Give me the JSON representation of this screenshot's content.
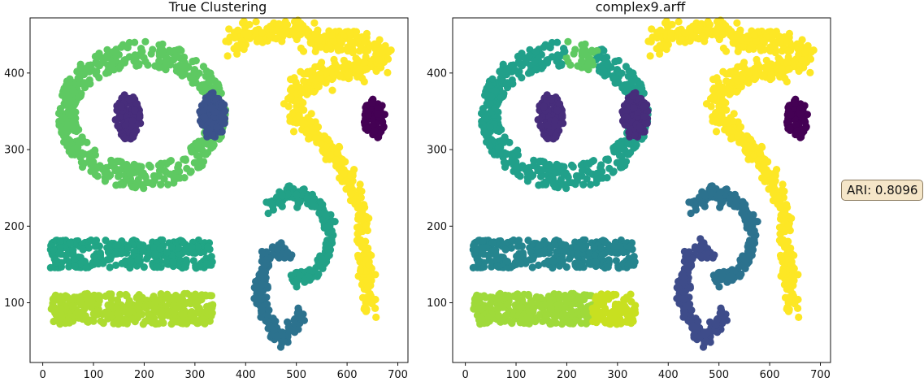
{
  "figure": {
    "annotation": "ARI: 0.8096"
  },
  "palette": {
    "c0": "#440154",
    "c1": "#472d7b",
    "c2": "#3b528b",
    "c3": "#2c728e",
    "c4": "#21918c",
    "c5": "#28ae80",
    "c6": "#5ec962",
    "c7": "#addc30",
    "c8": "#fde725",
    "c9": "#25858e",
    "c10": "#3e4c8a",
    "c11": "#35b779",
    "c12": "#5ec962",
    "c13": "#c8e020",
    "c14": "#9fda3a"
  },
  "chart_data": [
    {
      "type": "scatter",
      "title": "True Clustering",
      "xlabel": "",
      "ylabel": "",
      "xlim": [
        -25,
        720
      ],
      "ylim": [
        22,
        472
      ],
      "xticks": [
        0,
        100,
        200,
        300,
        400,
        500,
        600,
        700
      ],
      "yticks": [
        100,
        200,
        300,
        400
      ],
      "grid": false,
      "clusters": [
        {
          "shape": "ring",
          "cx": 195,
          "cy": 345,
          "rx": 148,
          "ry": 80,
          "thickness": 18,
          "n": 560,
          "color": "#5ec962"
        },
        {
          "shape": "blob",
          "cx": 168,
          "cy": 343,
          "rx": 26,
          "ry": 30,
          "n": 110,
          "color": "#472d7b"
        },
        {
          "shape": "blob",
          "cx": 335,
          "cy": 343,
          "rx": 26,
          "ry": 32,
          "n": 110,
          "color": "#3b528b"
        },
        {
          "shape": "blob",
          "cx": 653,
          "cy": 340,
          "rx": 22,
          "ry": 26,
          "n": 90,
          "color": "#440154"
        },
        {
          "shape": "rect",
          "x0": 15,
          "x1": 335,
          "y0": 145,
          "y1": 182,
          "n": 330,
          "color": "#21a585"
        },
        {
          "shape": "rect",
          "x0": 15,
          "x1": 335,
          "y0": 72,
          "y1": 112,
          "n": 360,
          "color": "#addc30"
        },
        {
          "shape": "poly",
          "points": [
            [
              370,
              440
            ],
            [
              410,
              450
            ],
            [
              460,
              455
            ],
            [
              520,
              448
            ],
            [
              570,
              442
            ],
            [
              640,
              438
            ],
            [
              675,
              420
            ],
            [
              630,
              405
            ],
            [
              580,
              400
            ],
            [
              555,
              395
            ],
            [
              520,
              392
            ],
            [
              500,
              380
            ],
            [
              495,
              360
            ],
            [
              510,
              340
            ],
            [
              540,
              320
            ],
            [
              570,
              300
            ],
            [
              590,
              280
            ],
            [
              605,
              255
            ],
            [
              620,
              235
            ],
            [
              630,
              210
            ],
            [
              632,
              180
            ],
            [
              635,
              150
            ],
            [
              638,
              120
            ],
            [
              642,
              90
            ]
          ],
          "thick": 14,
          "n": 750,
          "color": "#fde725"
        },
        {
          "shape": "poly",
          "points": [
            [
              450,
              225
            ],
            [
              470,
              240
            ],
            [
              490,
              245
            ],
            [
              510,
              238
            ],
            [
              540,
              230
            ],
            [
              560,
              210
            ],
            [
              565,
              185
            ],
            [
              560,
              165
            ],
            [
              550,
              150
            ],
            [
              535,
              140
            ],
            [
              520,
              132
            ],
            [
              500,
              130
            ],
            [
              490,
              135
            ]
          ],
          "thick": 10,
          "n": 200,
          "color": "#22a187"
        },
        {
          "shape": "poly",
          "points": [
            [
              485,
              165
            ],
            [
              470,
              172
            ],
            [
              455,
              168
            ],
            [
              440,
              155
            ],
            [
              432,
              135
            ],
            [
              428,
              115
            ],
            [
              432,
              95
            ],
            [
              440,
              80
            ],
            [
              455,
              65
            ],
            [
              465,
              55
            ],
            [
              470,
              48
            ],
            [
              478,
              55
            ],
            [
              485,
              65
            ],
            [
              500,
              78
            ],
            [
              515,
              82
            ]
          ],
          "thick": 10,
          "n": 200,
          "color": "#2c728e"
        }
      ]
    },
    {
      "type": "scatter",
      "title": "complex9.arff",
      "xlabel": "",
      "ylabel": "",
      "xlim": [
        -25,
        720
      ],
      "ylim": [
        22,
        472
      ],
      "xticks": [
        0,
        100,
        200,
        300,
        400,
        500,
        600,
        700
      ],
      "yticks": [
        100,
        200,
        300,
        400
      ],
      "grid": false,
      "clusters": [
        {
          "shape": "ring",
          "cx": 195,
          "cy": 345,
          "rx": 148,
          "ry": 80,
          "thickness": 18,
          "n": 560,
          "color": "#21a08a",
          "segment": {
            "angle_min": 1.15,
            "angle_max": 1.55,
            "color": "#5ec962"
          }
        },
        {
          "shape": "blob",
          "cx": 168,
          "cy": 343,
          "rx": 26,
          "ry": 30,
          "n": 110,
          "color": "#472d7b"
        },
        {
          "shape": "blob",
          "cx": 335,
          "cy": 343,
          "rx": 26,
          "ry": 32,
          "n": 110,
          "color": "#472d7b"
        },
        {
          "shape": "blob",
          "cx": 653,
          "cy": 340,
          "rx": 22,
          "ry": 26,
          "n": 90,
          "color": "#440154"
        },
        {
          "shape": "rect",
          "x0": 15,
          "x1": 335,
          "y0": 145,
          "y1": 182,
          "n": 330,
          "color": "#25858e"
        },
        {
          "shape": "rect",
          "x0": 15,
          "x1": 250,
          "y0": 72,
          "y1": 112,
          "n": 270,
          "color": "#9fda3a"
        },
        {
          "shape": "rect",
          "x0": 250,
          "x1": 335,
          "y0": 72,
          "y1": 112,
          "n": 100,
          "color": "#c8e020"
        },
        {
          "shape": "poly",
          "points": [
            [
              370,
              440
            ],
            [
              410,
              450
            ],
            [
              460,
              455
            ],
            [
              520,
              448
            ],
            [
              570,
              442
            ],
            [
              640,
              438
            ],
            [
              675,
              420
            ],
            [
              630,
              405
            ],
            [
              580,
              400
            ],
            [
              555,
              395
            ],
            [
              520,
              392
            ],
            [
              500,
              380
            ],
            [
              495,
              360
            ],
            [
              510,
              340
            ],
            [
              540,
              320
            ],
            [
              570,
              300
            ],
            [
              590,
              280
            ],
            [
              605,
              255
            ],
            [
              620,
              235
            ],
            [
              630,
              210
            ],
            [
              632,
              180
            ],
            [
              635,
              150
            ],
            [
              638,
              120
            ],
            [
              642,
              90
            ]
          ],
          "thick": 14,
          "n": 750,
          "color": "#fde725"
        },
        {
          "shape": "poly",
          "points": [
            [
              450,
              225
            ],
            [
              470,
              240
            ],
            [
              490,
              245
            ],
            [
              510,
              238
            ],
            [
              540,
              230
            ],
            [
              560,
              210
            ],
            [
              565,
              185
            ],
            [
              560,
              165
            ],
            [
              550,
              150
            ],
            [
              535,
              140
            ],
            [
              520,
              132
            ],
            [
              500,
              130
            ],
            [
              490,
              135
            ]
          ],
          "thick": 10,
          "n": 200,
          "color": "#2c728e"
        },
        {
          "shape": "poly",
          "points": [
            [
              485,
              165
            ],
            [
              470,
              172
            ],
            [
              455,
              168
            ],
            [
              440,
              155
            ],
            [
              432,
              135
            ],
            [
              428,
              115
            ],
            [
              432,
              95
            ],
            [
              440,
              80
            ],
            [
              455,
              65
            ],
            [
              465,
              55
            ],
            [
              470,
              48
            ],
            [
              478,
              55
            ],
            [
              485,
              65
            ],
            [
              500,
              78
            ],
            [
              515,
              82
            ]
          ],
          "thick": 10,
          "n": 200,
          "color": "#3e4c8a"
        }
      ]
    }
  ]
}
